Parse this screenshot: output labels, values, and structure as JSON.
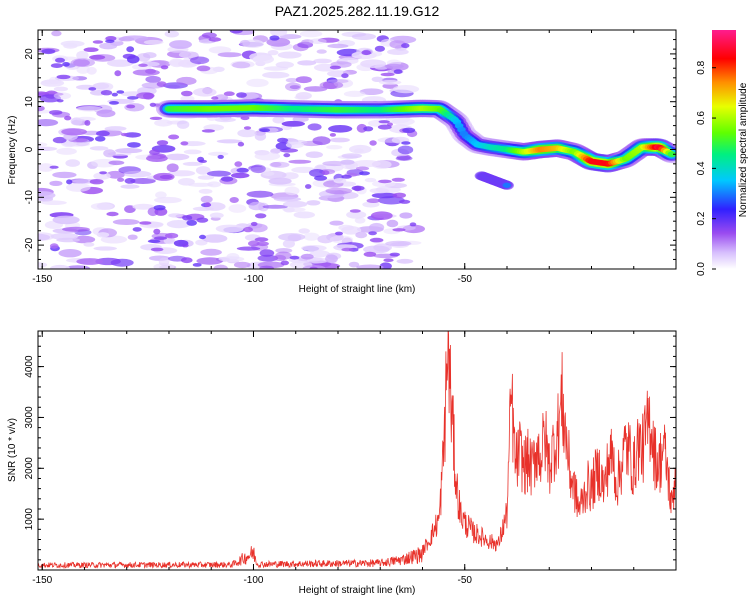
{
  "title": "PAZ1.2025.282.11.19.G12",
  "chart_data": [
    {
      "type": "heatmap",
      "xlabel": "Height of straight line (km)",
      "ylabel": "Frequency (Hz)",
      "xlim": [
        -151,
        0
      ],
      "ylim": [
        -25,
        25
      ],
      "x_ticks": [
        -150,
        -100,
        -50
      ],
      "y_ticks": [
        -20,
        -10,
        0,
        10,
        20
      ],
      "colorbar": {
        "label": "Normalized spectral amplitude",
        "range": [
          0,
          0.95
        ],
        "ticks": [
          "0.0",
          "0.2",
          "0.4",
          "0.6",
          "0.8"
        ],
        "colors": [
          "#ffffff",
          "#c9a6ff",
          "#8a2be2",
          "#2020ff",
          "#00c8ff",
          "#00ff7f",
          "#7fff00",
          "#ffff00",
          "#ff8c00",
          "#ff0000",
          "#ff1493"
        ]
      },
      "ridge": {
        "note": "dominant frequency ridge (Hz) vs height (km)",
        "x": [
          -120,
          -110,
          -100,
          -90,
          -80,
          -70,
          -60,
          -56,
          -52,
          -50,
          -47,
          -44,
          -40,
          -36,
          -32,
          -28,
          -24,
          -20,
          -16,
          -12,
          -8,
          -4,
          -1
        ],
        "y": [
          8.5,
          8.5,
          8.7,
          8.5,
          8.3,
          8.3,
          8.6,
          8.5,
          6.0,
          3.0,
          1.0,
          0.5,
          0.0,
          -0.5,
          0.0,
          0.3,
          -0.5,
          -2.5,
          -3.0,
          -2.0,
          0.5,
          0.5,
          -1.0
        ],
        "peak_amplitude": [
          0.5,
          0.55,
          0.55,
          0.45,
          0.5,
          0.45,
          0.6,
          0.55,
          0.35,
          0.3,
          0.35,
          0.4,
          0.45,
          0.6,
          0.75,
          0.7,
          0.55,
          0.85,
          0.85,
          0.55,
          0.6,
          0.9,
          0.5
        ]
      },
      "spur": {
        "x": [
          -46,
          -43,
          -40
        ],
        "y": [
          -5.5,
          -6.5,
          -7.5
        ]
      },
      "noise_region_x": [
        -151,
        -62
      ]
    },
    {
      "type": "line",
      "xlabel": "Height of straight line (km)",
      "ylabel": "SNR (10 * v/v)",
      "xlim": [
        -151,
        0
      ],
      "ylim": [
        0,
        4700
      ],
      "x_ticks": [
        -150,
        -100,
        -50
      ],
      "y_ticks": [
        1000,
        2000,
        3000,
        4000
      ],
      "color": "#e8312a",
      "anchors": {
        "x": [
          -151,
          -105,
          -100,
          -99,
          -90,
          -70,
          -65,
          -60,
          -58,
          -56,
          -55,
          -54,
          -53,
          -52,
          -51,
          -50,
          -48,
          -46,
          -44,
          -42,
          -40,
          -39,
          -38,
          -37,
          -36,
          -35,
          -34,
          -33,
          -32,
          -31,
          -30,
          -29,
          -28,
          -27,
          -26,
          -25,
          -24,
          -23,
          -22,
          -21,
          -20,
          -19,
          -18,
          -17,
          -16,
          -15,
          -14,
          -13,
          -12,
          -11,
          -10,
          -9,
          -8,
          -7,
          -6,
          -5,
          -4,
          -3,
          -2,
          -1,
          0
        ],
        "y": [
          120,
          130,
          420,
          140,
          150,
          170,
          250,
          400,
          700,
          1100,
          2500,
          4700,
          3200,
          1800,
          1200,
          1000,
          800,
          700,
          600,
          550,
          1200,
          3700,
          2200,
          2500,
          2200,
          2300,
          2100,
          2600,
          2400,
          2800,
          2200,
          2600,
          2900,
          3600,
          2800,
          2000,
          1700,
          1300,
          1500,
          1800,
          1700,
          2000,
          2100,
          1700,
          2300,
          2400,
          1800,
          2200,
          2600,
          2500,
          2100,
          2700,
          2500,
          2900,
          3200,
          2400,
          2200,
          2600,
          2100,
          1300,
          2200
        ]
      },
      "noise_amplitude_fraction": 0.35
    }
  ]
}
